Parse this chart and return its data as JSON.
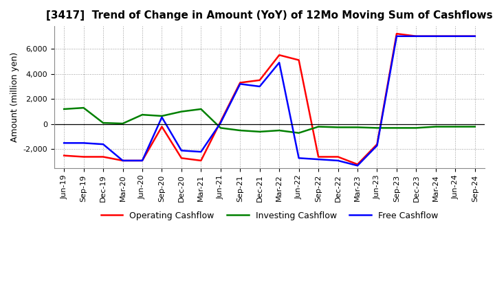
{
  "title": "[3417]  Trend of Change in Amount (YoY) of 12Mo Moving Sum of Cashflows",
  "ylabel": "Amount (million yen)",
  "x_labels": [
    "Jun-19",
    "Sep-19",
    "Dec-19",
    "Mar-20",
    "Jun-20",
    "Sep-20",
    "Dec-20",
    "Mar-21",
    "Jun-21",
    "Sep-21",
    "Dec-21",
    "Mar-22",
    "Jun-22",
    "Sep-22",
    "Dec-22",
    "Mar-23",
    "Jun-23",
    "Sep-23",
    "Dec-23",
    "Mar-24",
    "Jun-24",
    "Sep-24"
  ],
  "operating": [
    -2500,
    -2600,
    -2600,
    -2900,
    -2900,
    -200,
    -2700,
    -2900,
    200,
    3300,
    3500,
    5500,
    5100,
    -2600,
    -2600,
    -3200,
    -1600,
    7200,
    7000,
    7000,
    7000,
    7000
  ],
  "investing": [
    1200,
    1300,
    100,
    50,
    750,
    650,
    1000,
    1200,
    -300,
    -500,
    -600,
    -500,
    -700,
    -200,
    -250,
    -250,
    -300,
    -300,
    -300,
    -200,
    -200,
    -200
  ],
  "free": [
    -1500,
    -1500,
    -1600,
    -2900,
    -2900,
    550,
    -2100,
    -2200,
    100,
    3200,
    3000,
    4900,
    -2700,
    -2800,
    -2900,
    -3300,
    -1700,
    7000,
    7000,
    7000,
    7000,
    7000
  ],
  "operating_color": "#ff0000",
  "investing_color": "#008000",
  "free_color": "#0000ff",
  "bg_color": "#ffffff",
  "grid_color": "#999999",
  "ylim": [
    -3500,
    7800
  ],
  "yticks": [
    -2000,
    0,
    2000,
    4000,
    6000
  ],
  "title_fontsize": 11,
  "legend_fontsize": 9,
  "ylabel_fontsize": 9,
  "tick_fontsize": 8
}
